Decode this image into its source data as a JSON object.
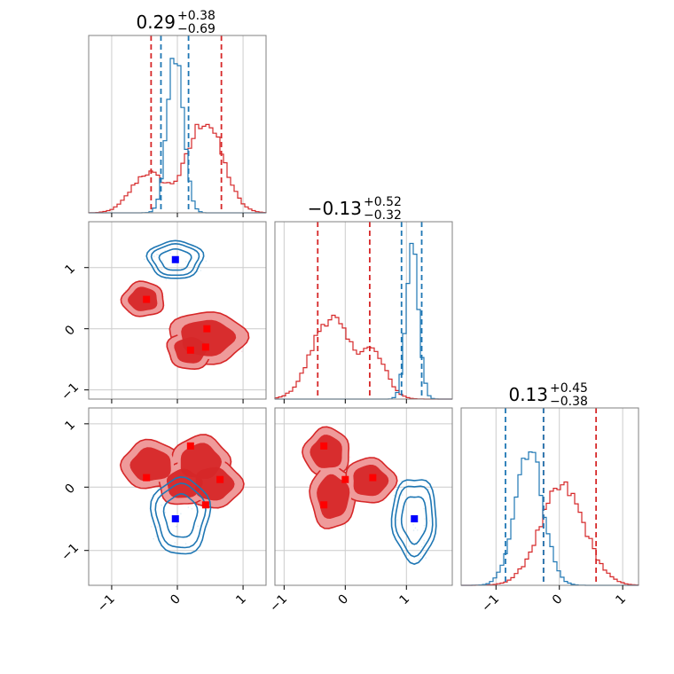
{
  "chart_data": {
    "type": "corner",
    "grid": true,
    "colors": {
      "red": "#d62728",
      "blue": "#1f77b4",
      "red_fill": "#ef9a9a",
      "axis": "#808080",
      "grid": "#cccccc"
    },
    "variables": [
      {
        "title": {
          "median": "0.29",
          "plus": "+0.38",
          "minus": "−0.69"
        }
      },
      {
        "title": {
          "median": "−0.13",
          "plus": "+0.52",
          "minus": "−0.32"
        }
      },
      {
        "title": {
          "median": "0.13",
          "plus": "+0.45",
          "minus": "−0.38"
        }
      }
    ],
    "range": [
      [
        -1.35,
        1.35
      ],
      [
        -1.15,
        1.75
      ],
      [
        -1.55,
        1.25
      ]
    ],
    "ticks": {
      "x0": [
        "−1",
        "0",
        "1"
      ],
      "x0_values": [
        -1,
        0,
        1
      ],
      "x1": [
        "−1",
        "0",
        "1"
      ],
      "x1_values": [
        -1,
        0,
        1
      ],
      "x2": [
        "−1",
        "0",
        "1"
      ],
      "x2_values": [
        -1,
        0,
        1
      ],
      "y1": [
        "−1",
        "0",
        "1"
      ],
      "y1_values": [
        -1,
        0,
        1
      ],
      "y2": [
        "−1",
        "0",
        "1"
      ],
      "y2_values": [
        -1,
        0,
        1
      ]
    },
    "quantile_lines": {
      "red": [
        [
          -0.4,
          0.67
        ],
        [
          -0.45,
          0.4
        ],
        [
          -0.25,
          0.58
        ]
      ],
      "blue": [
        [
          -0.25,
          0.17
        ],
        [
          0.92,
          1.25
        ],
        [
          -0.85,
          -0.25
        ]
      ]
    },
    "histograms": {
      "red": [
        {
          "components": [
            {
              "mu": -0.45,
              "sigma": 0.25,
              "w": 0.3
            },
            {
              "mu": 0.42,
              "sigma": 0.27,
              "w": 0.7
            }
          ],
          "peak": 0.52
        },
        {
          "components": [
            {
              "mu": -0.25,
              "sigma": 0.3,
              "w": 0.65
            },
            {
              "mu": 0.45,
              "sigma": 0.22,
              "w": 0.35
            }
          ],
          "peak": 0.46
        },
        {
          "components": [
            {
              "mu": 0.05,
              "sigma": 0.35,
              "w": 1.0
            }
          ],
          "peak": 0.55
        }
      ],
      "blue": [
        {
          "components": [
            {
              "mu": -0.03,
              "sigma": 0.12,
              "w": 1.0
            }
          ],
          "peak": 0.92
        },
        {
          "components": [
            {
              "mu": 1.1,
              "sigma": 0.1,
              "w": 1.0
            }
          ],
          "peak": 0.86
        },
        {
          "components": [
            {
              "mu": -0.48,
              "sigma": 0.22,
              "w": 1.0
            }
          ],
          "peak": 0.78
        }
      ]
    },
    "blobs": {
      "p10": {
        "red": [
          [
            -0.52,
            0.48,
            0.27,
            0.24
          ],
          [
            0.45,
            -0.15,
            0.5,
            0.36
          ],
          [
            0.2,
            -0.35,
            0.3,
            0.26
          ]
        ],
        "blue": [
          [
            -0.03,
            1.13,
            0.38,
            0.28
          ]
        ]
      },
      "p20": {
        "red": [
          [
            -0.4,
            0.35,
            0.38,
            0.32
          ],
          [
            0.35,
            0.4,
            0.38,
            0.34
          ],
          [
            0.55,
            0.05,
            0.36,
            0.32
          ],
          [
            0.1,
            0.05,
            0.33,
            0.28
          ]
        ],
        "blue": [
          [
            0.05,
            -0.45,
            0.4,
            0.55
          ]
        ]
      },
      "p21": {
        "red": [
          [
            -0.3,
            0.55,
            0.32,
            0.32
          ],
          [
            -0.2,
            -0.15,
            0.32,
            0.42
          ],
          [
            0.4,
            0.1,
            0.35,
            0.3
          ]
        ],
        "blue": [
          [
            1.13,
            -0.5,
            0.33,
            0.6
          ]
        ]
      }
    },
    "markers": {
      "p10": {
        "red": [
          [
            -0.47,
            0.48
          ],
          [
            0.45,
            0.0
          ],
          [
            0.43,
            -0.3
          ],
          [
            0.2,
            -0.35
          ]
        ],
        "blue": [
          [
            -0.03,
            1.13
          ]
        ]
      },
      "p20": {
        "red": [
          [
            -0.47,
            0.15
          ],
          [
            0.2,
            0.65
          ],
          [
            0.65,
            0.12
          ],
          [
            0.43,
            -0.28
          ]
        ],
        "blue": [
          [
            -0.03,
            -0.5
          ]
        ]
      },
      "p21": {
        "red": [
          [
            -0.35,
            0.65
          ],
          [
            0.0,
            0.12
          ],
          [
            0.45,
            0.15
          ],
          [
            -0.35,
            -0.28
          ]
        ],
        "blue": [
          [
            1.13,
            -0.5
          ]
        ]
      }
    }
  }
}
